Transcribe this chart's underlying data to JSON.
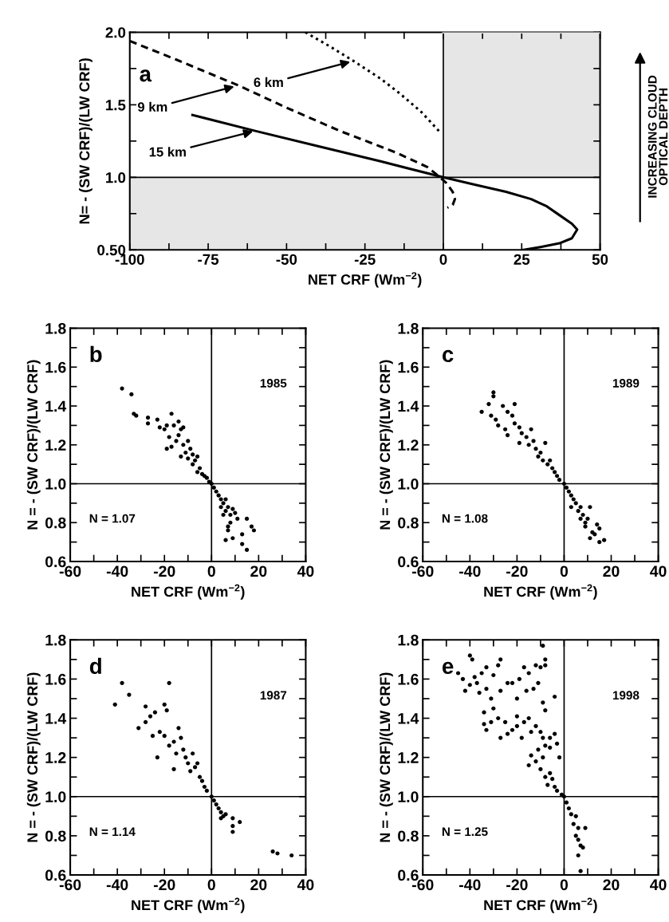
{
  "chart_data": [
    {
      "type": "line",
      "xlabel": "NET CRF (Wm$^{−2}$)",
      "ylabel": "N= - (SW CRF)/(LW CRF)",
      "xlim": [
        -100,
        50
      ],
      "ylim": [
        0.5,
        2.0
      ],
      "xticks": [
        -100,
        {
          "value": -87.5,
          "label": null
        },
        -75,
        {
          "value": -62.5,
          "label": null
        },
        -50,
        {
          "value": -37.5,
          "label": null
        },
        -25,
        {
          "value": -12.5,
          "label": null
        },
        0,
        {
          "value": 12.5,
          "label": null
        },
        25,
        {
          "value": 37.5,
          "label": null
        },
        50
      ],
      "yticks": [
        {
          "value": 0.5,
          "label": "0.50"
        },
        {
          "value": 0.75,
          "label": null
        },
        {
          "value": 1.0,
          "label": "1.0"
        },
        {
          "value": 1.25,
          "label": null
        },
        {
          "value": 1.5,
          "label": "1.5"
        },
        {
          "value": 1.75,
          "label": null
        },
        {
          "value": 2.0,
          "label": "2.0"
        }
      ],
      "legend": false,
      "grid": false,
      "ref_lines": [
        {
          "axis": "x",
          "value": 0,
          "color": "#000000"
        },
        {
          "axis": "y",
          "value": 1.0,
          "color": "#000000"
        }
      ],
      "series": [
        {
          "type": "area",
          "color": "#e6e6e6",
          "x": [
            -100,
            0
          ],
          "values": [
            1.0,
            1.0
          ]
        },
        {
          "type": "line",
          "color": "#e6e6e6",
          "x": [
            0,
            50
          ],
          "values": [
            2.0,
            2.0
          ],
          "lower": [
            1.0,
            1.0
          ],
          "upper": [
            2.0,
            2.0
          ]
        },
        {
          "color": "#000000",
          "line_style": "dotted",
          "x": [
            -44,
            -36,
            -28.5,
            -20,
            -14,
            -7,
            -1
          ],
          "values": [
            2.0,
            1.9,
            1.8,
            1.68,
            1.58,
            1.45,
            1.31
          ]
        },
        {
          "color": "#000000",
          "line_style": "dashed",
          "x": [
            -100,
            -85,
            -65,
            -50,
            -33,
            -15,
            -5,
            -1,
            1,
            3,
            3.7,
            3,
            1.3
          ],
          "values": [
            1.94,
            1.81,
            1.63,
            1.48,
            1.32,
            1.17,
            1.07,
            1.0,
            0.96,
            0.9,
            0.85,
            0.81,
            0.79
          ]
        },
        {
          "color": "#000000",
          "line_style": "solid",
          "x": [
            -80,
            -60,
            -40,
            -20,
            0,
            10,
            20,
            28,
            33,
            37,
            41,
            42.7,
            41,
            37,
            31,
            25.6
          ],
          "values": [
            1.43,
            1.32,
            1.215,
            1.11,
            1.0,
            0.95,
            0.9,
            0.85,
            0.8,
            0.74,
            0.68,
            0.64,
            0.58,
            0.545,
            0.52,
            0.5
          ]
        }
      ],
      "annotations": [
        "a",
        {
          "text": "6 km",
          "x": -29,
          "y": 1.8
        },
        {
          "text": "9 km",
          "x": -66,
          "y": 1.63
        },
        {
          "text": "15 km",
          "x": -60,
          "y": 1.32
        },
        "INCREASING CLOUD\nOPTICAL DEPTH"
      ]
    },
    {
      "type": "scatter",
      "xlabel": "NET CRF (Wm$^{−2}$)",
      "ylabel": "N = - (SW CRF)/(LW CRF)",
      "xlim": [
        -60,
        40
      ],
      "ylim": [
        0.6,
        1.8
      ],
      "xticks": [
        -60,
        {
          "value": -50,
          "label": null
        },
        -40,
        {
          "value": -30,
          "label": null
        },
        -20,
        {
          "value": -10,
          "label": null
        },
        0,
        {
          "value": 10,
          "label": null
        },
        20,
        {
          "value": 30,
          "label": null
        },
        40
      ],
      "yticks": [
        0.6,
        {
          "value": 0.7,
          "label": null
        },
        0.8,
        {
          "value": 0.9,
          "label": null
        },
        {
          "value": 1.0,
          "label": "1.0"
        },
        {
          "value": 1.1,
          "label": null
        },
        1.2,
        {
          "value": 1.3,
          "label": null
        },
        1.4,
        {
          "value": 1.5,
          "label": null
        },
        1.6,
        {
          "value": 1.7,
          "label": null
        },
        1.8
      ],
      "legend": false,
      "grid": false,
      "marker": "circle",
      "ref_lines": [
        {
          "axis": "x",
          "value": 0,
          "color": "#000000"
        },
        {
          "axis": "y",
          "value": 1.0,
          "color": "#000000"
        }
      ],
      "series": [
        {
          "color": "#000000",
          "x": [
            -38,
            -34,
            -33,
            -32,
            -27,
            -27,
            -23,
            -22,
            -20,
            -19,
            -17,
            -16,
            -14,
            -13,
            -12,
            -18,
            -17,
            -19,
            -15,
            -14,
            -12,
            -10,
            -11,
            -9,
            -8,
            -13,
            -10,
            -7,
            -6,
            -8,
            -5,
            -6,
            -4,
            -3,
            -2,
            -1,
            0,
            1,
            2,
            3,
            4,
            5,
            6,
            4,
            6,
            7,
            8,
            9,
            10,
            8,
            5,
            7,
            7,
            6,
            9,
            13,
            13,
            15,
            15,
            17,
            18,
            11
          ],
          "values": [
            1.49,
            1.46,
            1.36,
            1.35,
            1.34,
            1.31,
            1.33,
            1.29,
            1.28,
            1.3,
            1.36,
            1.3,
            1.32,
            1.28,
            1.29,
            1.24,
            1.19,
            1.18,
            1.22,
            1.25,
            1.2,
            1.22,
            1.16,
            1.18,
            1.15,
            1.14,
            1.13,
            1.12,
            1.14,
            1.1,
            1.08,
            1.06,
            1.05,
            1.04,
            1.03,
            1.01,
            1.0,
            0.98,
            0.96,
            0.94,
            0.92,
            0.9,
            0.92,
            0.88,
            0.86,
            0.88,
            0.84,
            0.87,
            0.85,
            0.8,
            0.84,
            0.78,
            0.76,
            0.71,
            0.72,
            0.74,
            0.69,
            0.66,
            0.82,
            0.78,
            0.76,
            0.82
          ]
        }
      ],
      "annotations": [
        "b",
        "1985",
        "N = 1.07"
      ]
    },
    {
      "type": "scatter",
      "xlabel": "NET CRF (Wm$^{−2}$)",
      "ylabel": "N = - (SW CRF)/(LW CRF)",
      "xlim": [
        -60,
        40
      ],
      "ylim": [
        0.6,
        1.8
      ],
      "xticks": [
        -60,
        {
          "value": -50,
          "label": null
        },
        -40,
        {
          "value": -30,
          "label": null
        },
        -20,
        {
          "value": -10,
          "label": null
        },
        0,
        {
          "value": 10,
          "label": null
        },
        20,
        {
          "value": 30,
          "label": null
        },
        40
      ],
      "yticks": [
        0.6,
        {
          "value": 0.7,
          "label": null
        },
        0.8,
        {
          "value": 0.9,
          "label": null
        },
        {
          "value": 1.0,
          "label": "1.0"
        },
        {
          "value": 1.1,
          "label": null
        },
        1.2,
        {
          "value": 1.3,
          "label": null
        },
        1.4,
        {
          "value": 1.5,
          "label": null
        },
        1.6,
        {
          "value": 1.7,
          "label": null
        },
        1.8
      ],
      "legend": false,
      "grid": false,
      "marker": "circle",
      "ref_lines": [
        {
          "axis": "x",
          "value": 0,
          "color": "#000000"
        },
        {
          "axis": "y",
          "value": 1.0,
          "color": "#000000"
        }
      ],
      "series": [
        {
          "color": "#000000",
          "x": [
            -35,
            -32,
            -30,
            -30,
            -31,
            -29,
            -28,
            -26,
            -24,
            -25,
            -24,
            -22,
            -21,
            -21,
            -19,
            -18,
            -19,
            -16,
            -14,
            -15,
            -13,
            -12,
            -10,
            -8,
            -11,
            -9,
            -7,
            -6,
            -5,
            -4,
            -3,
            -2,
            0,
            1,
            2,
            3,
            4,
            5,
            3,
            6,
            7,
            8,
            7,
            9,
            10,
            11,
            9,
            11,
            12,
            14,
            15,
            15,
            17,
            13
          ],
          "values": [
            1.37,
            1.41,
            1.47,
            1.45,
            1.35,
            1.33,
            1.3,
            1.4,
            1.37,
            1.28,
            1.25,
            1.35,
            1.41,
            1.31,
            1.29,
            1.26,
            1.21,
            1.24,
            1.28,
            1.2,
            1.22,
            1.18,
            1.16,
            1.21,
            1.14,
            1.12,
            1.1,
            1.12,
            1.08,
            1.06,
            1.04,
            1.02,
            1.0,
            0.98,
            0.96,
            0.94,
            0.92,
            0.9,
            0.88,
            0.86,
            0.88,
            0.84,
            0.82,
            0.8,
            0.82,
            0.88,
            0.78,
            0.72,
            0.75,
            0.79,
            0.77,
            0.7,
            0.71,
            0.74
          ]
        }
      ],
      "annotations": [
        "c",
        "1989",
        "N = 1.08"
      ]
    },
    {
      "type": "scatter",
      "xlabel": "NET CRF (Wm$^{−2}$)",
      "ylabel": "N = - (SW CRF)/(LW CRF)",
      "xlim": [
        -60,
        40
      ],
      "ylim": [
        0.6,
        1.8
      ],
      "xticks": [
        -60,
        {
          "value": -50,
          "label": null
        },
        -40,
        {
          "value": -30,
          "label": null
        },
        -20,
        {
          "value": -10,
          "label": null
        },
        0,
        {
          "value": 10,
          "label": null
        },
        20,
        {
          "value": 30,
          "label": null
        },
        40
      ],
      "yticks": [
        0.6,
        {
          "value": 0.7,
          "label": null
        },
        0.8,
        {
          "value": 0.9,
          "label": null
        },
        {
          "value": 1.0,
          "label": "1.0"
        },
        {
          "value": 1.1,
          "label": null
        },
        1.2,
        {
          "value": 1.3,
          "label": null
        },
        1.4,
        {
          "value": 1.5,
          "label": null
        },
        1.6,
        {
          "value": 1.7,
          "label": null
        },
        1.8
      ],
      "legend": false,
      "grid": false,
      "marker": "circle",
      "ref_lines": [
        {
          "axis": "x",
          "value": 0,
          "color": "#000000"
        },
        {
          "axis": "y",
          "value": 1.0,
          "color": "#000000"
        }
      ],
      "series": [
        {
          "color": "#000000",
          "x": [
            -41,
            -38,
            -35,
            -18,
            -31,
            -28,
            -28,
            -26,
            -24,
            -20,
            -19,
            -23,
            -25,
            -22,
            -20,
            -18,
            -16,
            -14,
            -13,
            -15,
            -16,
            -12,
            -11,
            -10,
            -8,
            -7,
            -9,
            -6,
            -5,
            -4,
            -3,
            -2,
            0,
            1,
            2,
            3,
            4,
            5,
            6,
            4,
            9,
            9,
            9,
            12,
            26,
            28,
            34
          ],
          "values": [
            1.47,
            1.58,
            1.52,
            1.58,
            1.35,
            1.46,
            1.38,
            1.41,
            1.43,
            1.47,
            1.44,
            1.2,
            1.31,
            1.33,
            1.31,
            1.26,
            1.28,
            1.35,
            1.3,
            1.22,
            1.14,
            1.24,
            1.2,
            1.17,
            1.22,
            1.15,
            1.13,
            1.17,
            1.1,
            1.08,
            1.05,
            1.03,
            1.0,
            0.98,
            0.96,
            0.94,
            0.92,
            0.9,
            0.91,
            0.89,
            0.89,
            0.85,
            0.82,
            0.87,
            0.72,
            0.71,
            0.7
          ]
        }
      ],
      "annotations": [
        "d",
        "1987",
        "N = 1.14"
      ]
    },
    {
      "type": "scatter",
      "xlabel": "NET CRF (Wm$^{−2}$)",
      "ylabel": "N = - (SW CRF)/(LW CRF)",
      "xlim": [
        -60,
        40
      ],
      "ylim": [
        0.6,
        1.8
      ],
      "xticks": [
        -60,
        {
          "value": -50,
          "label": null
        },
        -40,
        {
          "value": -30,
          "label": null
        },
        -20,
        {
          "value": -10,
          "label": null
        },
        0,
        {
          "value": 10,
          "label": null
        },
        20,
        {
          "value": 30,
          "label": null
        },
        40
      ],
      "yticks": [
        0.6,
        {
          "value": 0.7,
          "label": null
        },
        0.8,
        {
          "value": 0.9,
          "label": null
        },
        {
          "value": 1.0,
          "label": "1.0"
        },
        {
          "value": 1.1,
          "label": null
        },
        1.2,
        {
          "value": 1.3,
          "label": null
        },
        1.4,
        {
          "value": 1.5,
          "label": null
        },
        1.6,
        {
          "value": 1.7,
          "label": null
        },
        1.8
      ],
      "legend": false,
      "grid": false,
      "marker": "circle",
      "ref_lines": [
        {
          "axis": "x",
          "value": 0,
          "color": "#000000"
        },
        {
          "axis": "y",
          "value": 1.0,
          "color": "#000000"
        }
      ],
      "series": [
        {
          "color": "#000000",
          "x": [
            -45,
            -43,
            -42,
            -40,
            -39,
            -40,
            -38,
            -37,
            -36,
            -35,
            -33,
            -33,
            -31,
            -30,
            -28,
            -27,
            -27,
            -24,
            -22,
            -20,
            -19,
            -17,
            -15,
            -16,
            -13,
            -12,
            -10,
            -9,
            -8,
            -8,
            -11,
            -9,
            -4,
            -8,
            -34,
            -34,
            -33,
            -31,
            -30,
            -28,
            -27,
            -25,
            -24,
            -22,
            -20,
            -20,
            -18,
            -17,
            -15,
            -14,
            -12,
            -10,
            -9,
            -6,
            -4,
            -3,
            -6,
            -8,
            -11,
            -14,
            -15,
            -12,
            -9,
            -10,
            -8,
            -6,
            -5,
            -7,
            -4,
            -2,
            -3,
            -1,
            0,
            1,
            2,
            3,
            5,
            4,
            6,
            9,
            5,
            6,
            7,
            8,
            6,
            7
          ],
          "values": [
            1.63,
            1.6,
            1.54,
            1.72,
            1.7,
            1.57,
            1.61,
            1.58,
            1.53,
            1.63,
            1.66,
            1.55,
            1.5,
            1.62,
            1.67,
            1.54,
            1.7,
            1.58,
            1.58,
            1.5,
            1.6,
            1.66,
            1.63,
            1.54,
            1.55,
            1.67,
            1.66,
            1.77,
            1.7,
            1.67,
            1.58,
            1.48,
            1.51,
            1.44,
            1.43,
            1.37,
            1.34,
            1.38,
            1.45,
            1.4,
            1.3,
            1.38,
            1.32,
            1.34,
            1.41,
            1.36,
            1.3,
            1.38,
            1.4,
            1.33,
            1.36,
            1.33,
            1.3,
            1.3,
            1.32,
            1.27,
            1.25,
            1.26,
            1.24,
            1.21,
            1.16,
            1.18,
            1.2,
            1.14,
            1.1,
            1.12,
            1.09,
            1.06,
            1.05,
            1.2,
            1.03,
            1.01,
            1.0,
            0.97,
            0.94,
            0.91,
            0.9,
            0.86,
            0.84,
            0.84,
            0.8,
            0.78,
            0.75,
            0.74,
            0.7,
            0.62
          ]
        }
      ],
      "annotations": [
        "e",
        "1998",
        "N = 1.25"
      ]
    }
  ]
}
